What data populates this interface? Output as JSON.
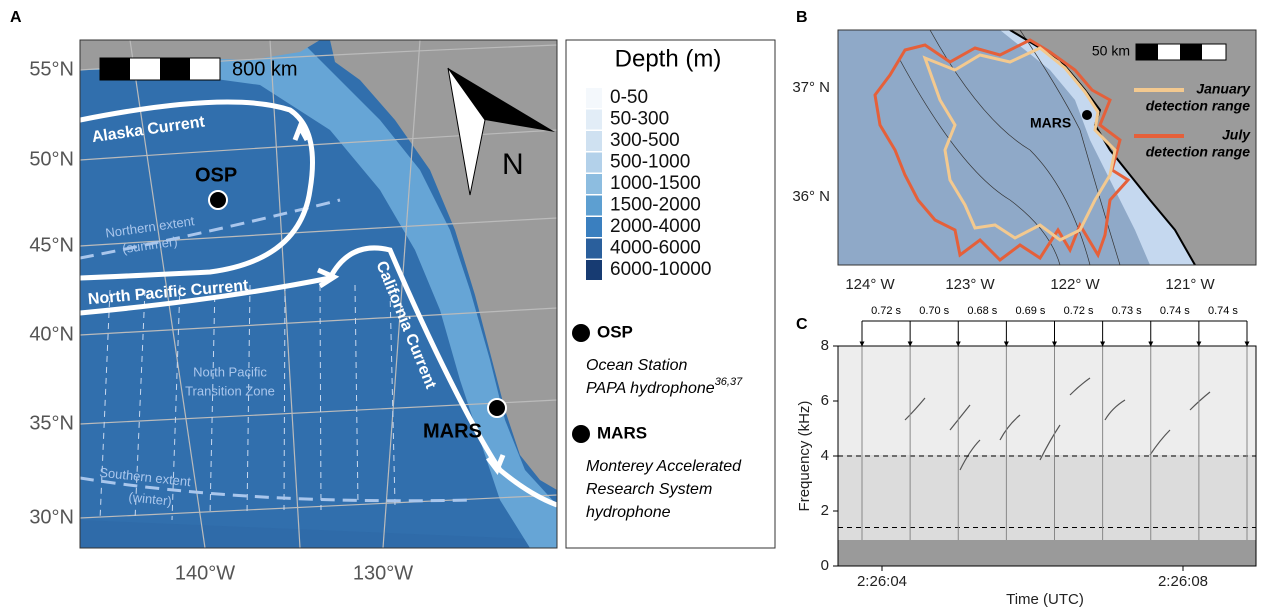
{
  "panel_a": {
    "label": "A",
    "lat_labels": [
      "55°N",
      "50°N",
      "45°N",
      "40°N",
      "35°N",
      "30°N"
    ],
    "lon_labels": [
      "140°W",
      "130°W"
    ],
    "scale_bar": "800 km",
    "north": "N",
    "currents": [
      "Alaska Current",
      "North Pacific Current",
      "California Current"
    ],
    "zones": [
      "Northern extent",
      "(summer)",
      "North Pacific",
      "Transition Zone",
      "Southern extent",
      "(winter)"
    ],
    "stations": [
      "OSP",
      "MARS"
    ],
    "legend": {
      "title": "Depth (m)",
      "classes": [
        {
          "label": "0-50",
          "color": "#f4f8fc"
        },
        {
          "label": "50-300",
          "color": "#e2edf7"
        },
        {
          "label": "300-500",
          "color": "#cfe1f1"
        },
        {
          "label": "500-1000",
          "color": "#b3d1ea"
        },
        {
          "label": "1000-1500",
          "color": "#8dbde0"
        },
        {
          "label": "1500-2000",
          "color": "#5d9fd1"
        },
        {
          "label": "2000-4000",
          "color": "#3a7fbf"
        },
        {
          "label": "4000-6000",
          "color": "#2a5f9c"
        },
        {
          "label": "6000-10000",
          "color": "#173b72"
        }
      ],
      "stations": [
        {
          "name": "OSP",
          "desc": [
            "Ocean Station",
            "PAPA hydrophone"
          ],
          "sup": "36,37"
        },
        {
          "name": "MARS",
          "desc": [
            "Monterey Accelerated",
            "Research System",
            "hydrophone"
          ]
        }
      ]
    }
  },
  "panel_b": {
    "label": "B",
    "lat_labels": [
      "37° N",
      "36° N"
    ],
    "lon_labels": [
      "124° W",
      "123° W",
      "122° W",
      "121° W"
    ],
    "scale_bar": "50 km",
    "station": "MARS",
    "legend": [
      {
        "name": [
          "January",
          "detection range"
        ],
        "color": "#f3c98f"
      },
      {
        "name": [
          "July",
          "detection range"
        ],
        "color": "#e5603a"
      }
    ]
  },
  "panel_c": {
    "label": "C",
    "intervals": [
      "0.72 s",
      "0.70 s",
      "0.68 s",
      "0.69 s",
      "0.72 s",
      "0.73 s",
      "0.74 s",
      "0.74 s"
    ],
    "y_label": "Frequency (kHz)",
    "ylim": [
      0,
      8
    ],
    "yticks": [
      0,
      2,
      4,
      6,
      8
    ],
    "band_limits": [
      1.4,
      4
    ],
    "x_label": "Time (UTC)",
    "xticks": [
      "2:26:04",
      "2:26:08"
    ]
  }
}
